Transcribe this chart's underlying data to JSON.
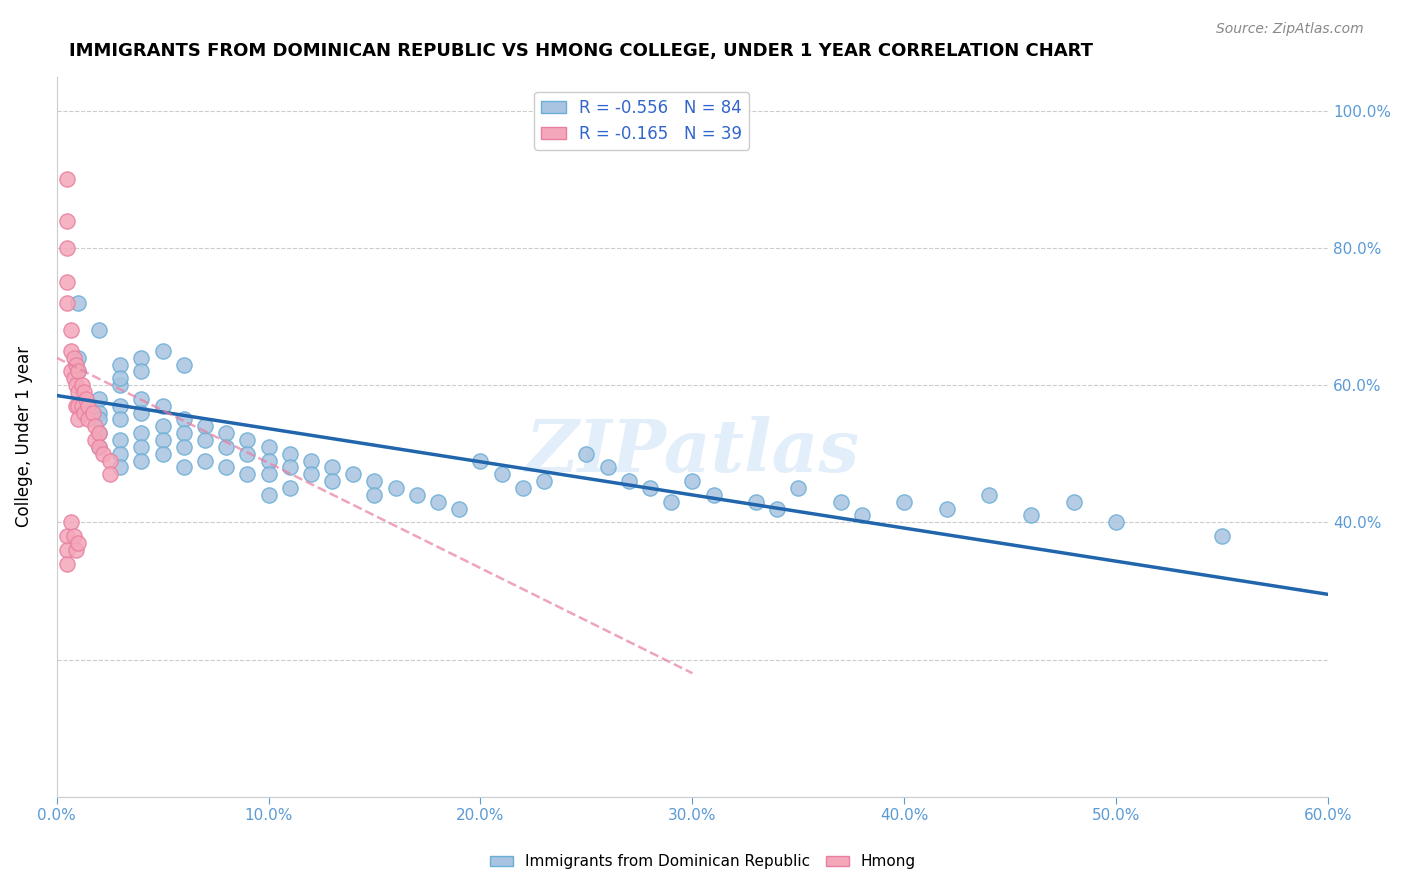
{
  "title": "IMMIGRANTS FROM DOMINICAN REPUBLIC VS HMONG COLLEGE, UNDER 1 YEAR CORRELATION CHART",
  "source": "Source: ZipAtlas.com",
  "xlabel": "",
  "ylabel": "College, Under 1 year",
  "xlim": [
    0.0,
    0.6
  ],
  "ylim": [
    0.0,
    1.05
  ],
  "xticks": [
    0.0,
    0.1,
    0.2,
    0.3,
    0.4,
    0.5,
    0.6
  ],
  "xticklabels": [
    "0.0%",
    "10.0%",
    "20.0%",
    "30.0%",
    "40.0%",
    "50.0%",
    "60.0%"
  ],
  "yticks_left": [
    0.0,
    0.2,
    0.4,
    0.6,
    0.8,
    1.0
  ],
  "yticks_right": [
    0.4,
    0.6,
    0.8,
    1.0
  ],
  "ytick_right_labels": [
    "40.0%",
    "60.0%",
    "80.0%",
    "100.0%"
  ],
  "blue_R": -0.556,
  "blue_N": 84,
  "pink_R": -0.165,
  "pink_N": 39,
  "blue_color": "#a8c4e0",
  "blue_edge": "#6aaed6",
  "pink_color": "#f4a7b9",
  "pink_edge": "#e87fa0",
  "blue_line_color": "#2166ac",
  "pink_line_color": "#f4a7b9",
  "title_fontsize": 13,
  "axis_label_color": "#5b9bd5",
  "watermark": "ZIPatlas",
  "blue_scatter_x": [
    0.01,
    0.01,
    0.02,
    0.02,
    0.02,
    0.02,
    0.02,
    0.03,
    0.03,
    0.03,
    0.03,
    0.03,
    0.03,
    0.04,
    0.04,
    0.04,
    0.04,
    0.04,
    0.05,
    0.05,
    0.05,
    0.05,
    0.06,
    0.06,
    0.06,
    0.06,
    0.07,
    0.07,
    0.07,
    0.08,
    0.08,
    0.08,
    0.09,
    0.09,
    0.09,
    0.1,
    0.1,
    0.1,
    0.1,
    0.11,
    0.11,
    0.11,
    0.12,
    0.12,
    0.13,
    0.13,
    0.14,
    0.15,
    0.15,
    0.16,
    0.17,
    0.18,
    0.19,
    0.2,
    0.21,
    0.22,
    0.23,
    0.25,
    0.26,
    0.27,
    0.28,
    0.29,
    0.3,
    0.31,
    0.33,
    0.34,
    0.35,
    0.37,
    0.38,
    0.4,
    0.42,
    0.44,
    0.46,
    0.48,
    0.5,
    0.55,
    0.01,
    0.02,
    0.03,
    0.03,
    0.04,
    0.04,
    0.05,
    0.06
  ],
  "blue_scatter_y": [
    0.64,
    0.62,
    0.58,
    0.56,
    0.55,
    0.53,
    0.51,
    0.6,
    0.57,
    0.55,
    0.52,
    0.5,
    0.48,
    0.58,
    0.56,
    0.53,
    0.51,
    0.49,
    0.57,
    0.54,
    0.52,
    0.5,
    0.55,
    0.53,
    0.51,
    0.48,
    0.54,
    0.52,
    0.49,
    0.53,
    0.51,
    0.48,
    0.52,
    0.5,
    0.47,
    0.51,
    0.49,
    0.47,
    0.44,
    0.5,
    0.48,
    0.45,
    0.49,
    0.47,
    0.48,
    0.46,
    0.47,
    0.46,
    0.44,
    0.45,
    0.44,
    0.43,
    0.42,
    0.49,
    0.47,
    0.45,
    0.46,
    0.5,
    0.48,
    0.46,
    0.45,
    0.43,
    0.46,
    0.44,
    0.43,
    0.42,
    0.45,
    0.43,
    0.41,
    0.43,
    0.42,
    0.44,
    0.41,
    0.43,
    0.4,
    0.38,
    0.72,
    0.68,
    0.63,
    0.61,
    0.64,
    0.62,
    0.65,
    0.63
  ],
  "pink_scatter_x": [
    0.005,
    0.005,
    0.005,
    0.005,
    0.005,
    0.007,
    0.007,
    0.007,
    0.008,
    0.008,
    0.009,
    0.009,
    0.009,
    0.01,
    0.01,
    0.01,
    0.01,
    0.012,
    0.012,
    0.013,
    0.013,
    0.014,
    0.015,
    0.015,
    0.017,
    0.018,
    0.018,
    0.02,
    0.02,
    0.022,
    0.025,
    0.025,
    0.005,
    0.005,
    0.005,
    0.007,
    0.008,
    0.009,
    0.01
  ],
  "pink_scatter_y": [
    0.9,
    0.84,
    0.8,
    0.75,
    0.72,
    0.68,
    0.65,
    0.62,
    0.64,
    0.61,
    0.63,
    0.6,
    0.57,
    0.62,
    0.59,
    0.57,
    0.55,
    0.6,
    0.57,
    0.59,
    0.56,
    0.58,
    0.57,
    0.55,
    0.56,
    0.54,
    0.52,
    0.53,
    0.51,
    0.5,
    0.49,
    0.47,
    0.38,
    0.36,
    0.34,
    0.4,
    0.38,
    0.36,
    0.37
  ],
  "blue_line_x0": 0.0,
  "blue_line_y0": 0.585,
  "blue_line_x1": 0.6,
  "blue_line_y1": 0.295,
  "pink_line_x0": 0.0,
  "pink_line_y0": 0.64,
  "pink_line_x1": 0.3,
  "pink_line_y1": 0.18
}
